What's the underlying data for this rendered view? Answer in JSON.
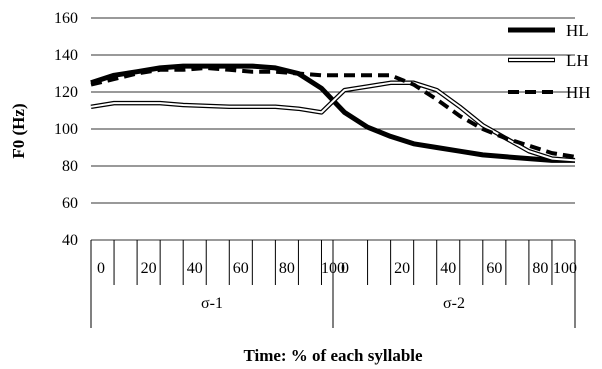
{
  "chart_data": {
    "type": "line",
    "title": "",
    "ylabel": "F0 (Hz)",
    "xlabel": "Time: % of each syllable",
    "ylim": [
      40,
      160
    ],
    "yticks": [
      40,
      60,
      80,
      100,
      120,
      140,
      160
    ],
    "grid": "horizontal",
    "legend_position": "right",
    "x": [
      0,
      10,
      20,
      30,
      40,
      50,
      60,
      70,
      80,
      90,
      100,
      0,
      10,
      20,
      30,
      40,
      50,
      60,
      70,
      80,
      90,
      100
    ],
    "x_tick_labels": [
      "0",
      "20",
      "40",
      "60",
      "80",
      "100",
      "0",
      "20",
      "40",
      "60",
      "80",
      "100"
    ],
    "groups": [
      "σ-1",
      "σ-2"
    ],
    "series": [
      {
        "name": "HL",
        "style": "thick-solid",
        "values": [
          125,
          129,
          131,
          133,
          134,
          134,
          134,
          134,
          133,
          130,
          122,
          109,
          101,
          96,
          92,
          90,
          88,
          86,
          85,
          84,
          83,
          83
        ]
      },
      {
        "name": "LH",
        "style": "double-line",
        "values": [
          112,
          114,
          114,
          114,
          113,
          112.5,
          112,
          112,
          112,
          111,
          109,
          121,
          123,
          125,
          125,
          121,
          112,
          102,
          95,
          88,
          84,
          83
        ]
      },
      {
        "name": "HH",
        "style": "dashed",
        "values": [
          124,
          127,
          130,
          132,
          132,
          133,
          132,
          131,
          131,
          130,
          129,
          129,
          129,
          129,
          124,
          116,
          107,
          100,
          95,
          91,
          87,
          85
        ]
      }
    ]
  }
}
